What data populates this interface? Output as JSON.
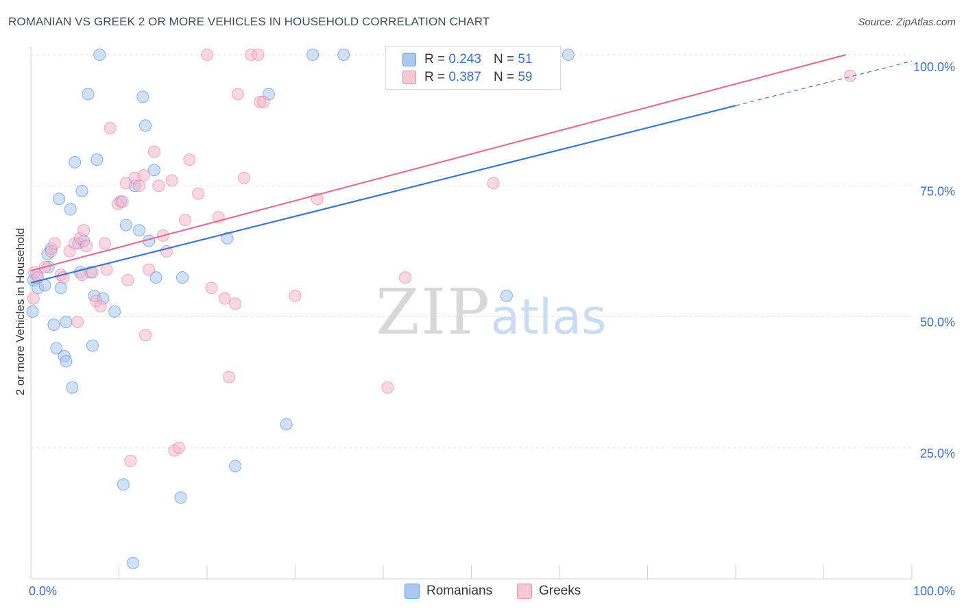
{
  "title": "ROMANIAN VS GREEK 2 OR MORE VEHICLES IN HOUSEHOLD CORRELATION CHART",
  "source": "Source: ZipAtlas.com",
  "watermark": {
    "zip": "ZIP",
    "atlas": "atlas"
  },
  "legend_top": [
    {
      "r_label": "R =",
      "r_value": "0.243",
      "n_label": "N =",
      "n_value": "51",
      "color": "#aac8f0"
    },
    {
      "r_label": "R =",
      "r_value": "0.387",
      "n_label": "N =",
      "n_value": "59",
      "color": "#f5b8cc"
    }
  ],
  "legend_bottom": [
    {
      "name": "Romanians",
      "color": "#aac8f0"
    },
    {
      "name": "Greeks",
      "color": "#f5b8cc"
    }
  ],
  "chart_data": {
    "type": "scatter",
    "xlabel": "",
    "ylabel": "2 or more Vehicles in Household",
    "xlim": [
      0,
      100
    ],
    "ylim": [
      0,
      100
    ],
    "x_tick_labels": [
      "0.0%",
      "100.0%"
    ],
    "y_tick_labels": [
      "25.0%",
      "50.0%",
      "75.0%",
      "100.0%"
    ],
    "y_ticks": [
      25,
      50,
      75,
      100
    ],
    "grid": true,
    "legend_placement": "top-center",
    "series": [
      {
        "name": "Romanians",
        "color": "#3a78d0",
        "fill": "#aac8f0",
        "trend": {
          "x0": 0,
          "y0": 56.5,
          "x1": 80,
          "y1": 90.3,
          "dash_to": 100,
          "dash_y": 98.8
        },
        "points": [
          [
            0.2,
            51
          ],
          [
            0.3,
            57
          ],
          [
            0.7,
            58
          ],
          [
            0.8,
            55.5
          ],
          [
            1.6,
            56
          ],
          [
            1.9,
            62
          ],
          [
            2.0,
            59.5
          ],
          [
            2.3,
            63
          ],
          [
            2.6,
            48.5
          ],
          [
            2.9,
            44
          ],
          [
            3.2,
            72.5
          ],
          [
            3.4,
            55.5
          ],
          [
            3.8,
            42.5
          ],
          [
            4.0,
            49
          ],
          [
            4.0,
            41.5
          ],
          [
            4.5,
            70.5
          ],
          [
            4.7,
            36.5
          ],
          [
            5.0,
            79.5
          ],
          [
            5.4,
            64
          ],
          [
            5.6,
            58.5
          ],
          [
            5.8,
            74
          ],
          [
            6.0,
            64.5
          ],
          [
            6.5,
            92.5
          ],
          [
            6.8,
            58.5
          ],
          [
            7.0,
            44.5
          ],
          [
            7.2,
            54
          ],
          [
            7.5,
            80
          ],
          [
            7.8,
            100
          ],
          [
            8.2,
            53.5
          ],
          [
            9.5,
            51
          ],
          [
            10.2,
            72
          ],
          [
            10.5,
            18
          ],
          [
            10.8,
            67.5
          ],
          [
            11.6,
            3
          ],
          [
            11.8,
            75
          ],
          [
            12.3,
            66.5
          ],
          [
            12.7,
            92
          ],
          [
            13.0,
            86.5
          ],
          [
            13.4,
            64.5
          ],
          [
            14.0,
            78
          ],
          [
            14.2,
            57.5
          ],
          [
            17.0,
            15.5
          ],
          [
            17.2,
            57.5
          ],
          [
            22.3,
            65
          ],
          [
            23.2,
            21.5
          ],
          [
            27.0,
            92.5
          ],
          [
            29.0,
            29.5
          ],
          [
            32.0,
            100
          ],
          [
            35.5,
            100
          ],
          [
            54.0,
            54
          ],
          [
            61.0,
            100
          ]
        ]
      },
      {
        "name": "Greeks",
        "color": "#e07098",
        "fill": "#f5b8cc",
        "trend": {
          "x0": 0,
          "y0": 58.8,
          "x1": 92.5,
          "y1": 100
        },
        "points": [
          [
            0.3,
            53.5
          ],
          [
            0.4,
            58.5
          ],
          [
            0.8,
            57.5
          ],
          [
            1.6,
            59.5
          ],
          [
            2.3,
            62.5
          ],
          [
            2.7,
            64
          ],
          [
            3.4,
            58
          ],
          [
            3.7,
            57.5
          ],
          [
            4.4,
            62.5
          ],
          [
            5.0,
            64
          ],
          [
            5.3,
            49
          ],
          [
            5.6,
            65
          ],
          [
            5.8,
            58
          ],
          [
            6.0,
            66.5
          ],
          [
            6.3,
            63.5
          ],
          [
            7.0,
            58.5
          ],
          [
            7.4,
            53
          ],
          [
            7.9,
            52
          ],
          [
            8.4,
            64
          ],
          [
            8.6,
            59
          ],
          [
            9.0,
            86
          ],
          [
            9.9,
            71.5
          ],
          [
            10.4,
            72
          ],
          [
            10.8,
            75.5
          ],
          [
            11.0,
            57
          ],
          [
            11.3,
            22.5
          ],
          [
            11.8,
            76.5
          ],
          [
            12.3,
            75
          ],
          [
            12.8,
            77
          ],
          [
            13.0,
            46.5
          ],
          [
            13.4,
            59
          ],
          [
            14.0,
            81.5
          ],
          [
            14.5,
            75
          ],
          [
            15.0,
            65.5
          ],
          [
            15.4,
            62.5
          ],
          [
            16.0,
            76
          ],
          [
            16.3,
            24.5
          ],
          [
            16.8,
            25
          ],
          [
            17.5,
            68.5
          ],
          [
            18.0,
            80
          ],
          [
            19.0,
            73.5
          ],
          [
            20.0,
            100
          ],
          [
            20.5,
            55.5
          ],
          [
            21.3,
            69
          ],
          [
            22.0,
            53.5
          ],
          [
            22.5,
            38.5
          ],
          [
            23.2,
            52.5
          ],
          [
            23.5,
            92.5
          ],
          [
            24.2,
            76.5
          ],
          [
            25.0,
            100
          ],
          [
            25.8,
            100
          ],
          [
            26.0,
            91
          ],
          [
            26.4,
            91
          ],
          [
            30.0,
            54
          ],
          [
            32.5,
            72.5
          ],
          [
            40.5,
            36.5
          ],
          [
            42.5,
            57.5
          ],
          [
            52.5,
            75.5
          ],
          [
            93.0,
            96
          ]
        ]
      }
    ]
  }
}
